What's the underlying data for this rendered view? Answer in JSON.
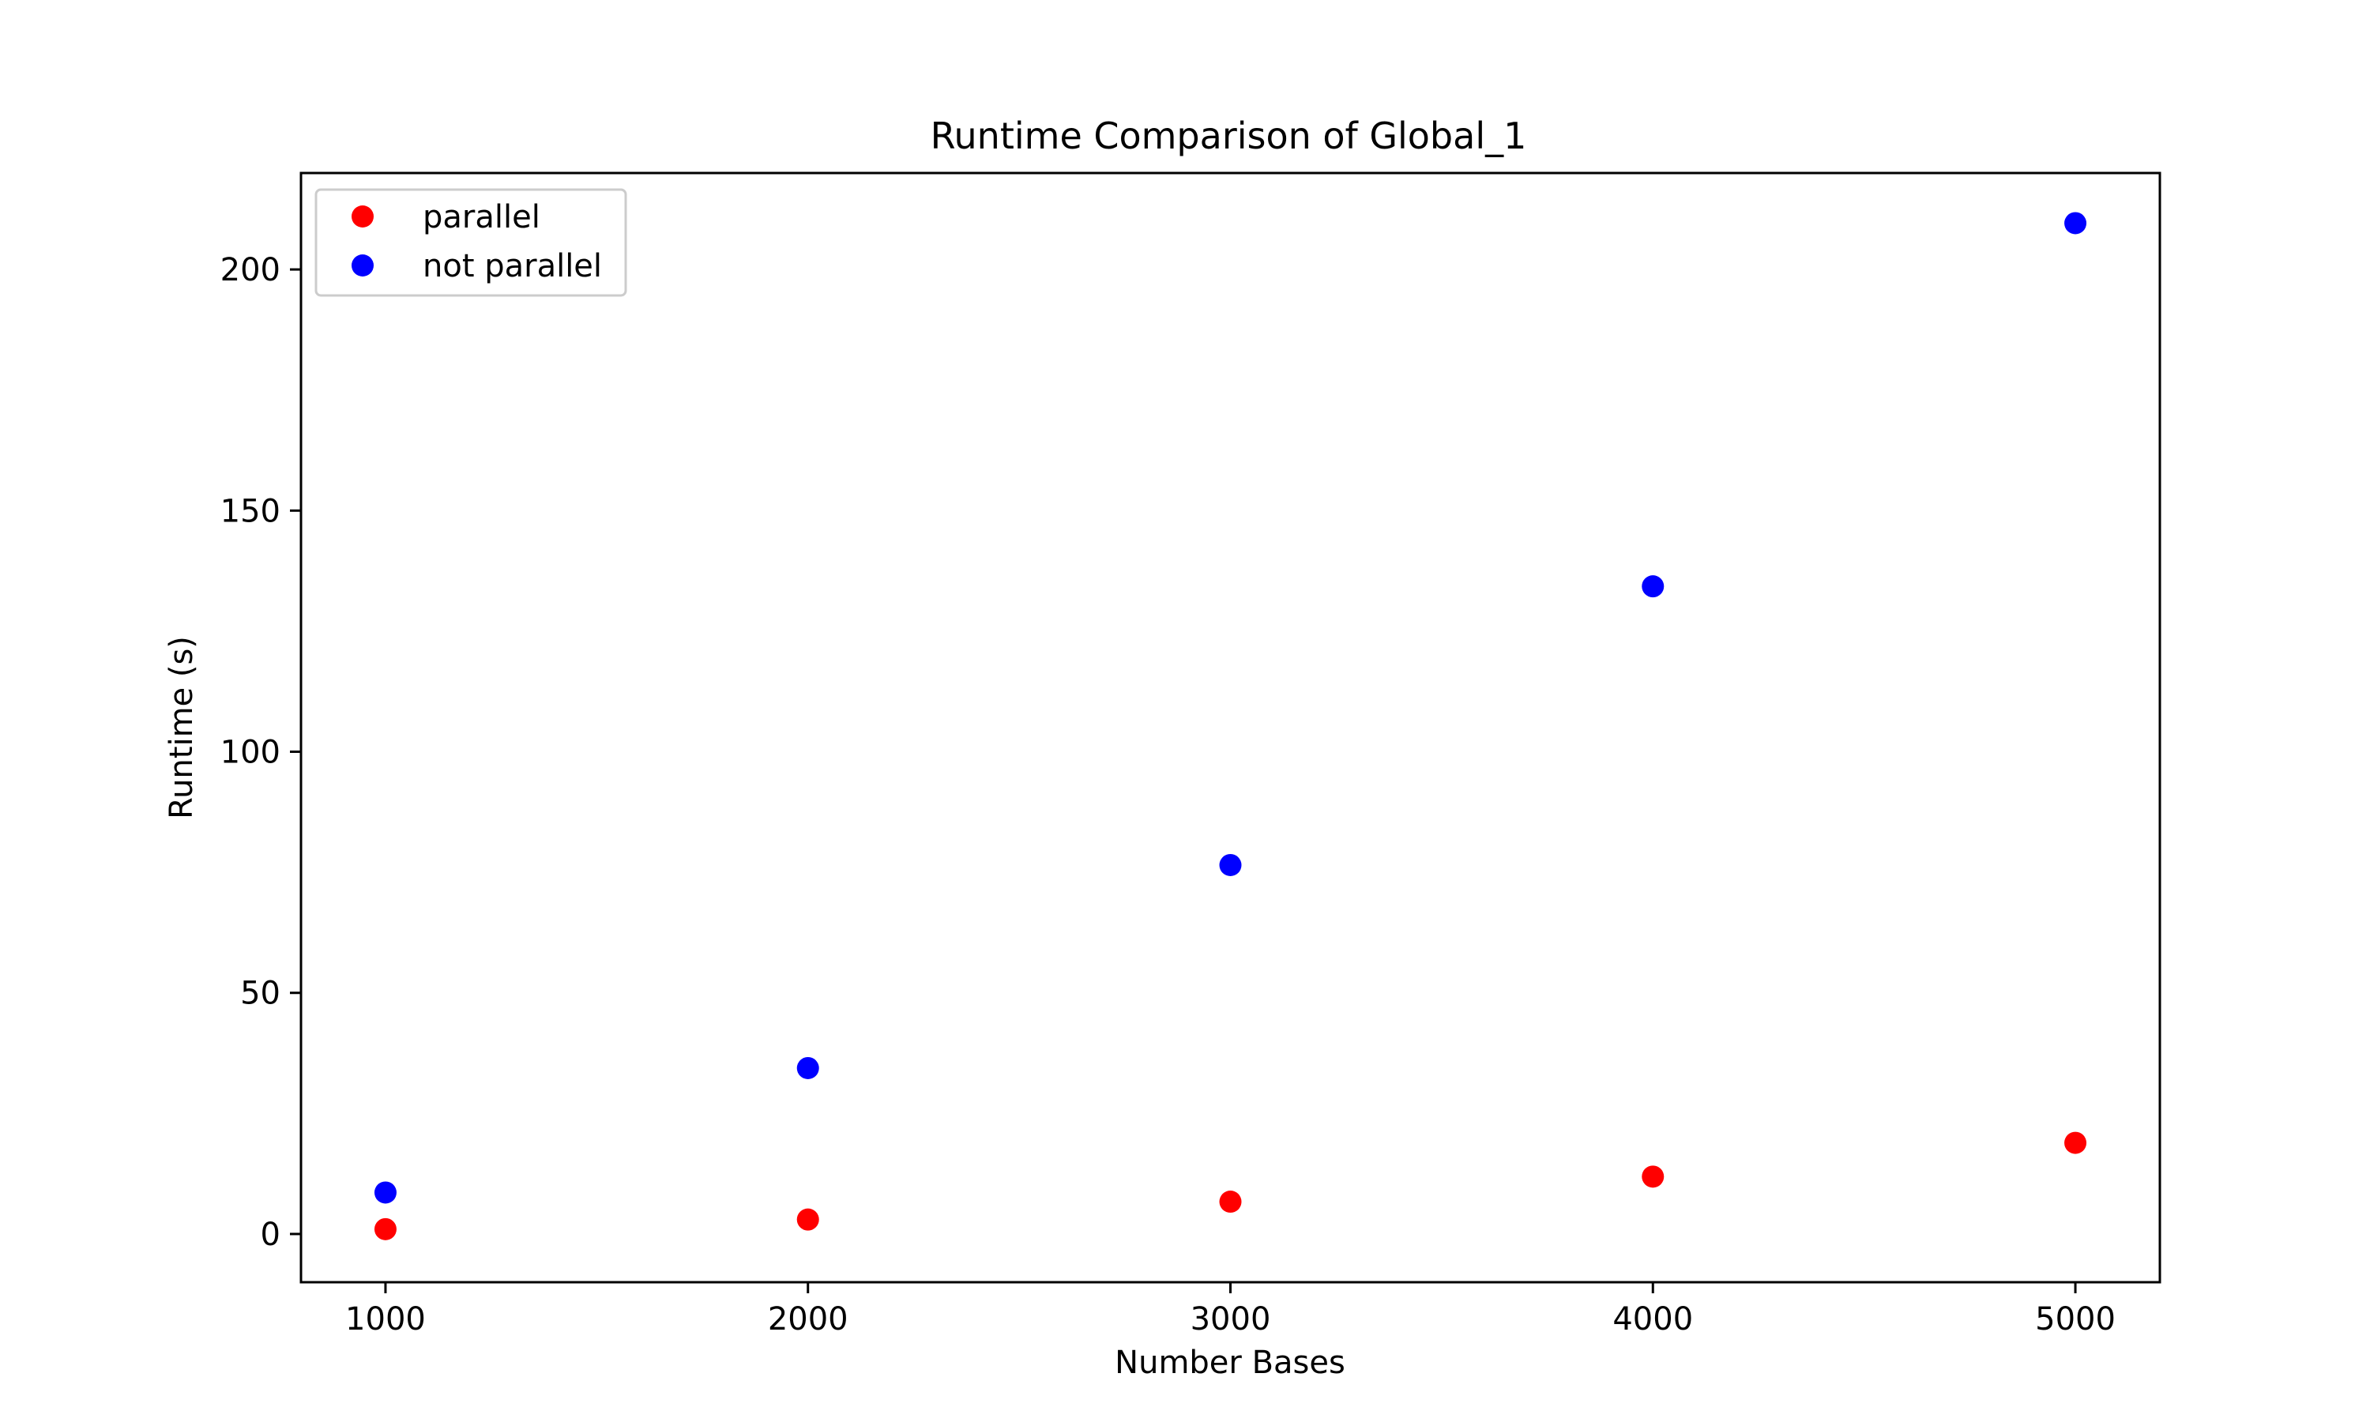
{
  "chart_data": {
    "type": "scatter",
    "title": "Runtime Comparison of Global_1",
    "xlabel": "Number Bases",
    "ylabel": "Runtime (s)",
    "xlim": [
      800,
      5200
    ],
    "ylim": [
      -10,
      220
    ],
    "xticks": [
      1000,
      2000,
      3000,
      4000,
      5000
    ],
    "xtick_labels": [
      "1000",
      "2000",
      "3000",
      "4000",
      "5000"
    ],
    "yticks": [
      0,
      50,
      100,
      150,
      200
    ],
    "ytick_labels": [
      "0",
      "50",
      "100",
      "150",
      "200"
    ],
    "grid": false,
    "legend_position": "top-left",
    "series": [
      {
        "name": "parallel",
        "color": "#ff0000",
        "x": [
          1000,
          2000,
          3000,
          4000,
          5000
        ],
        "y": [
          1.0,
          3.0,
          6.7,
          11.9,
          18.9
        ]
      },
      {
        "name": "not parallel",
        "color": "#0000ff",
        "x": [
          1000,
          2000,
          3000,
          4000,
          5000
        ],
        "y": [
          8.6,
          34.4,
          76.5,
          134.3,
          209.6
        ]
      }
    ]
  }
}
